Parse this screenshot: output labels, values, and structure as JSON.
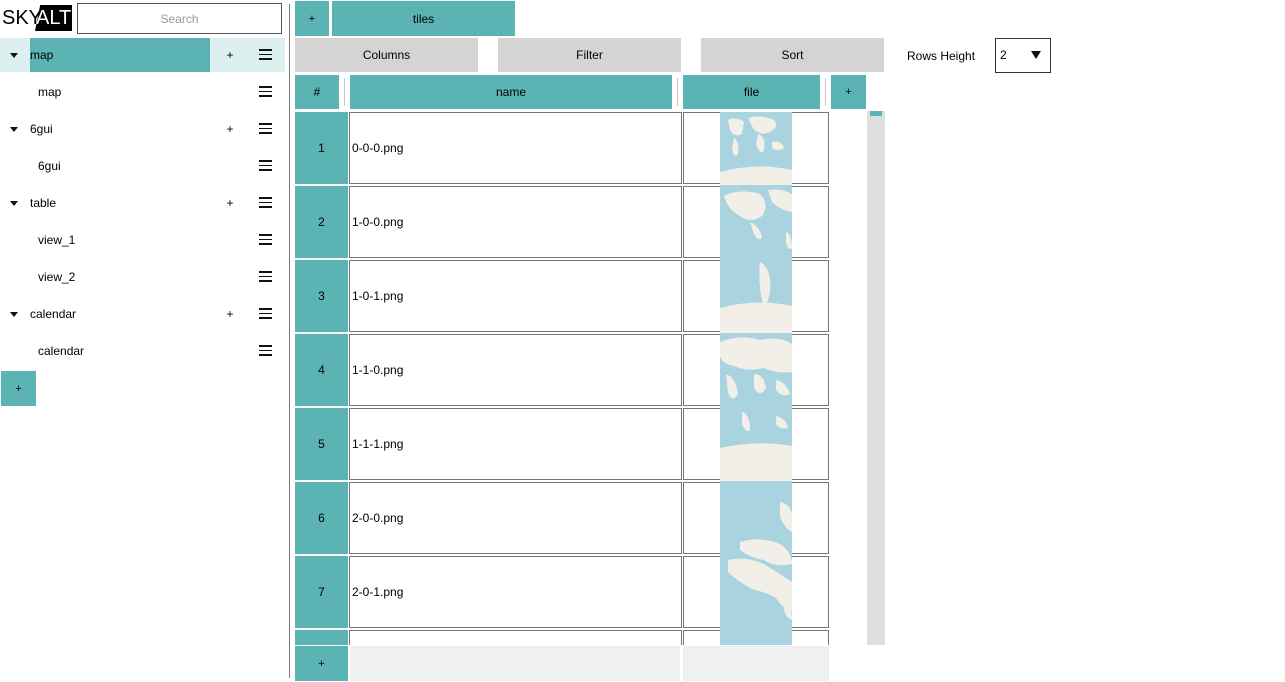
{
  "app": {
    "logo_text_a": "SKY",
    "logo_text_b": "ALT",
    "search_placeholder": "Search"
  },
  "sidebar": {
    "items": [
      {
        "label": "map",
        "level": 0,
        "expanded": true,
        "selected": true
      },
      {
        "label": "map",
        "level": 1
      },
      {
        "label": "6gui",
        "level": 0,
        "expanded": true
      },
      {
        "label": "6gui",
        "level": 1
      },
      {
        "label": "table",
        "level": 0,
        "expanded": true
      },
      {
        "label": "view_1",
        "level": 1
      },
      {
        "label": "view_2",
        "level": 1
      },
      {
        "label": "calendar",
        "level": 0,
        "expanded": true
      },
      {
        "label": "calendar",
        "level": 1
      }
    ],
    "plus_label": "+",
    "add_label": "+"
  },
  "tabs": {
    "add_label": "+",
    "active_tab": "tiles"
  },
  "toolbar": {
    "columns_label": "Columns",
    "filter_label": "Filter",
    "sort_label": "Sort",
    "rows_height_label": "Rows Height",
    "rows_height_value": "2"
  },
  "table": {
    "headers": {
      "index": "#",
      "name": "name",
      "file": "file",
      "add": "+"
    },
    "rows": [
      {
        "index": "1",
        "name": "0-0-0.png"
      },
      {
        "index": "2",
        "name": "1-0-0.png"
      },
      {
        "index": "3",
        "name": "1-0-1.png"
      },
      {
        "index": "4",
        "name": "1-1-0.png"
      },
      {
        "index": "5",
        "name": "1-1-1.png"
      },
      {
        "index": "6",
        "name": "2-0-0.png"
      },
      {
        "index": "7",
        "name": "2-0-1.png"
      }
    ],
    "add_row_label": "+"
  },
  "colors": {
    "accent": "#5bb3b3",
    "accent_light": "#ddf0f0",
    "button_gray": "#d4d4d4",
    "map_water": "#a9d3df",
    "map_land": "#f2efe9"
  }
}
